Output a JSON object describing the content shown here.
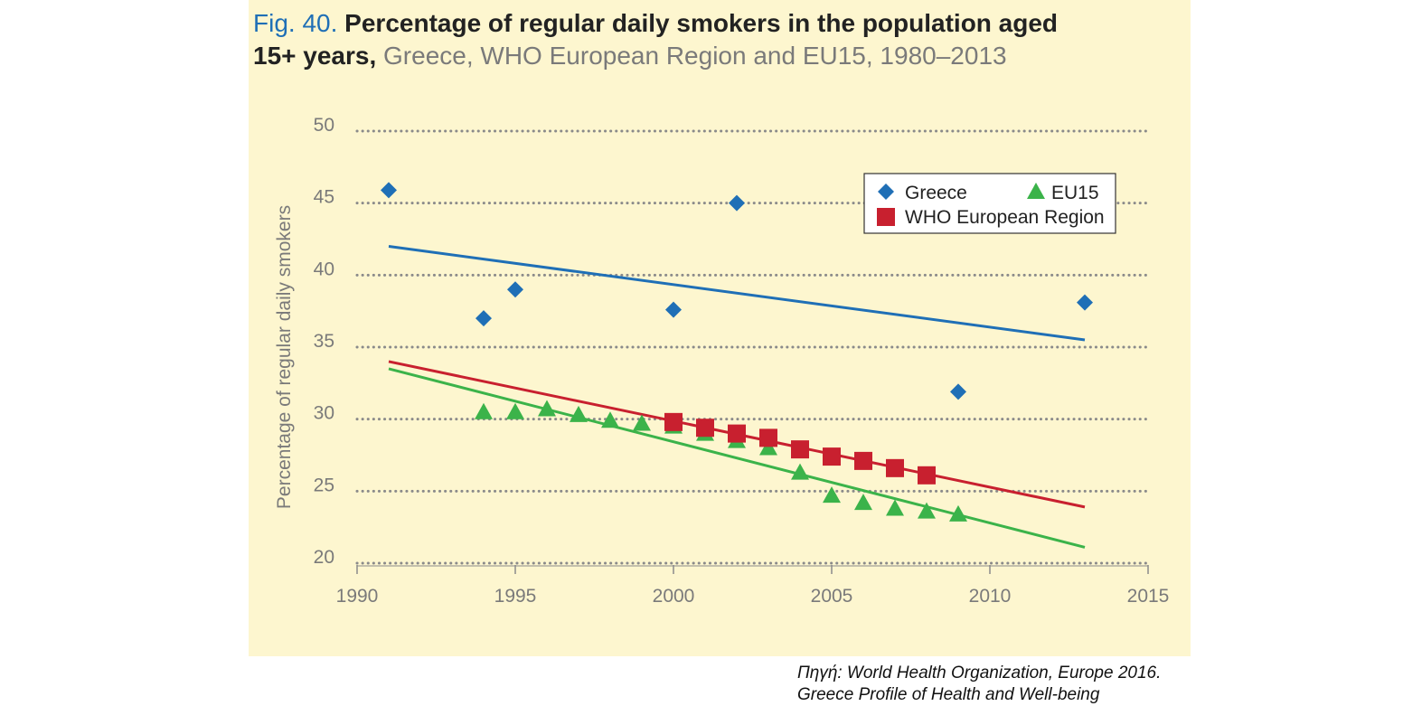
{
  "figure": {
    "fig_label": "Fig. 40.",
    "title_bold_1": "Percentage of regular daily smokers in the population aged",
    "title_bold_2": "15+ years,",
    "subtitle": "Greece, WHO European Region and EU15, 1980–2013"
  },
  "caption": {
    "line1": "Πηγή: World Health Organization, Europe 2016.",
    "line2": "Greece Profile of Health and Well-being"
  },
  "colors": {
    "background": "#fdf6cf",
    "greece": "#1f6fb6",
    "eu15": "#3bb34a",
    "who": "#c8202f",
    "grid": "#8a8a8a",
    "axis_text": "#7a7a7a"
  },
  "chart_data": {
    "type": "scatter",
    "title": "Percentage of regular daily smokers in the population aged 15+ years",
    "xlabel": "",
    "ylabel": "Percentage of regular daily smokers",
    "xlim": [
      1990,
      2015
    ],
    "ylim": [
      20,
      50
    ],
    "x_ticks": [
      1990,
      1995,
      2000,
      2005,
      2010,
      2015
    ],
    "y_ticks": [
      20,
      25,
      30,
      35,
      40,
      45,
      50
    ],
    "grid": "horizontal dotted",
    "legend_position": "top-right",
    "series": [
      {
        "name": "Greece",
        "marker": "diamond",
        "color": "#1f6fb6",
        "x": [
          1991,
          1994,
          1995,
          2000,
          2002,
          2009,
          2013
        ],
        "y": [
          45.9,
          37.0,
          39.0,
          37.6,
          45.0,
          31.9,
          38.1
        ],
        "trendline": {
          "x": [
            1991,
            2013
          ],
          "y": [
            42.0,
            35.5
          ]
        }
      },
      {
        "name": "EU15",
        "marker": "triangle",
        "color": "#3bb34a",
        "x": [
          1994,
          1995,
          1996,
          1997,
          1998,
          1999,
          2000,
          2001,
          2002,
          2003,
          2004,
          2005,
          2006,
          2007,
          2008,
          2009
        ],
        "y": [
          30.5,
          30.5,
          30.7,
          30.3,
          29.9,
          29.7,
          29.5,
          29.0,
          28.5,
          28.0,
          26.3,
          24.7,
          24.2,
          23.8,
          23.6,
          23.4
        ],
        "trendline": {
          "x": [
            1991,
            2013
          ],
          "y": [
            33.5,
            21.1
          ]
        }
      },
      {
        "name": "WHO European Region",
        "marker": "square",
        "color": "#c8202f",
        "x": [
          2000,
          2001,
          2002,
          2003,
          2004,
          2005,
          2006,
          2007,
          2008
        ],
        "y": [
          29.8,
          29.4,
          29.0,
          28.7,
          27.9,
          27.4,
          27.1,
          26.6,
          26.1
        ],
        "trendline": {
          "x": [
            1991,
            2013
          ],
          "y": [
            34.0,
            23.9
          ]
        }
      }
    ],
    "legend": [
      {
        "label": "Greece",
        "marker": "diamond",
        "color": "#1f6fb6"
      },
      {
        "label": "EU15",
        "marker": "triangle",
        "color": "#3bb34a"
      },
      {
        "label": "WHO European Region",
        "marker": "square",
        "color": "#c8202f"
      }
    ]
  }
}
